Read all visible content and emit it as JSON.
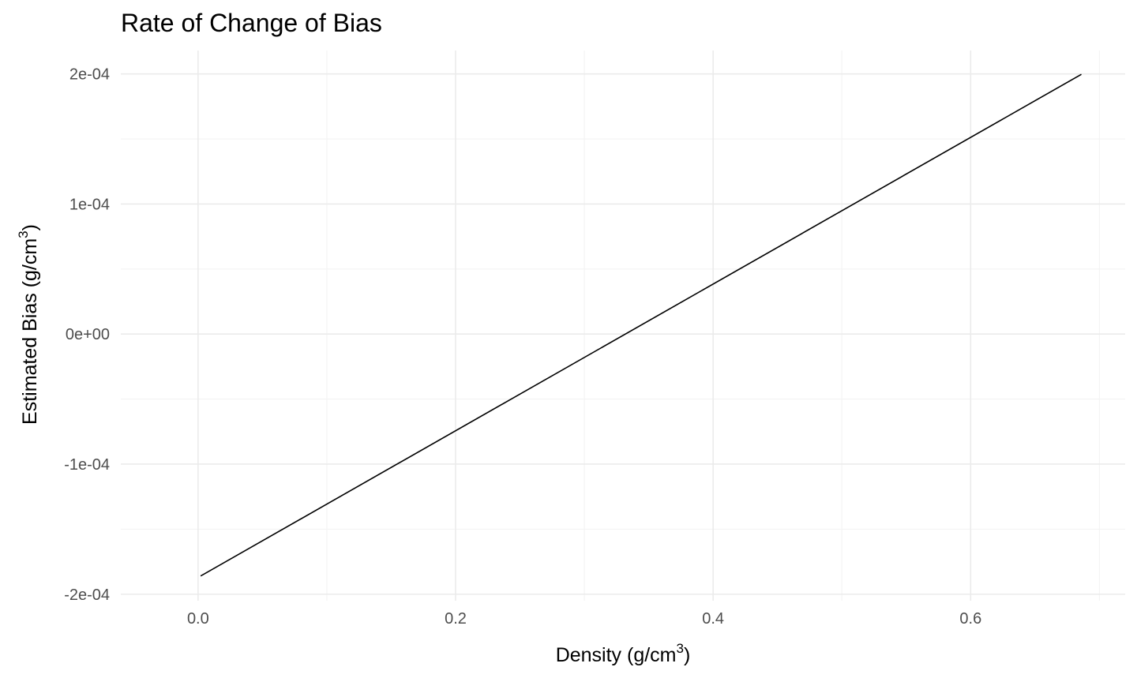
{
  "chart_data": {
    "type": "line",
    "title": "Rate of Change of Bias",
    "xlabel": {
      "text": "Density (g/cm",
      "superscript": "3",
      "suffix": ")"
    },
    "ylabel": {
      "text": "Estimated Bias (g/cm",
      "superscript": "3",
      "suffix": ")"
    },
    "xlim": [
      -0.06,
      0.72
    ],
    "ylim": [
      -0.000205,
      0.000218
    ],
    "x_ticks": [
      0.0,
      0.2,
      0.4,
      0.6
    ],
    "x_tick_labels": [
      "0.0",
      "0.2",
      "0.4",
      "0.6"
    ],
    "x_minor_ticks": [
      0.1,
      0.3,
      0.5,
      0.7
    ],
    "y_ticks": [
      -0.0002,
      -0.0001,
      0,
      0.0001,
      0.0002
    ],
    "y_tick_labels": [
      "-2e-04",
      "-1e-04",
      "0e+00",
      "1e-04",
      "2e-04"
    ],
    "y_minor_ticks": [
      -0.00015,
      -5e-05,
      5e-05,
      0.00015
    ],
    "grid": true,
    "legend": "none",
    "series": [
      {
        "color": "#000000",
        "x": [
          0.002,
          0.686
        ],
        "y": [
          -0.000186,
          0.0001997
        ]
      }
    ]
  }
}
